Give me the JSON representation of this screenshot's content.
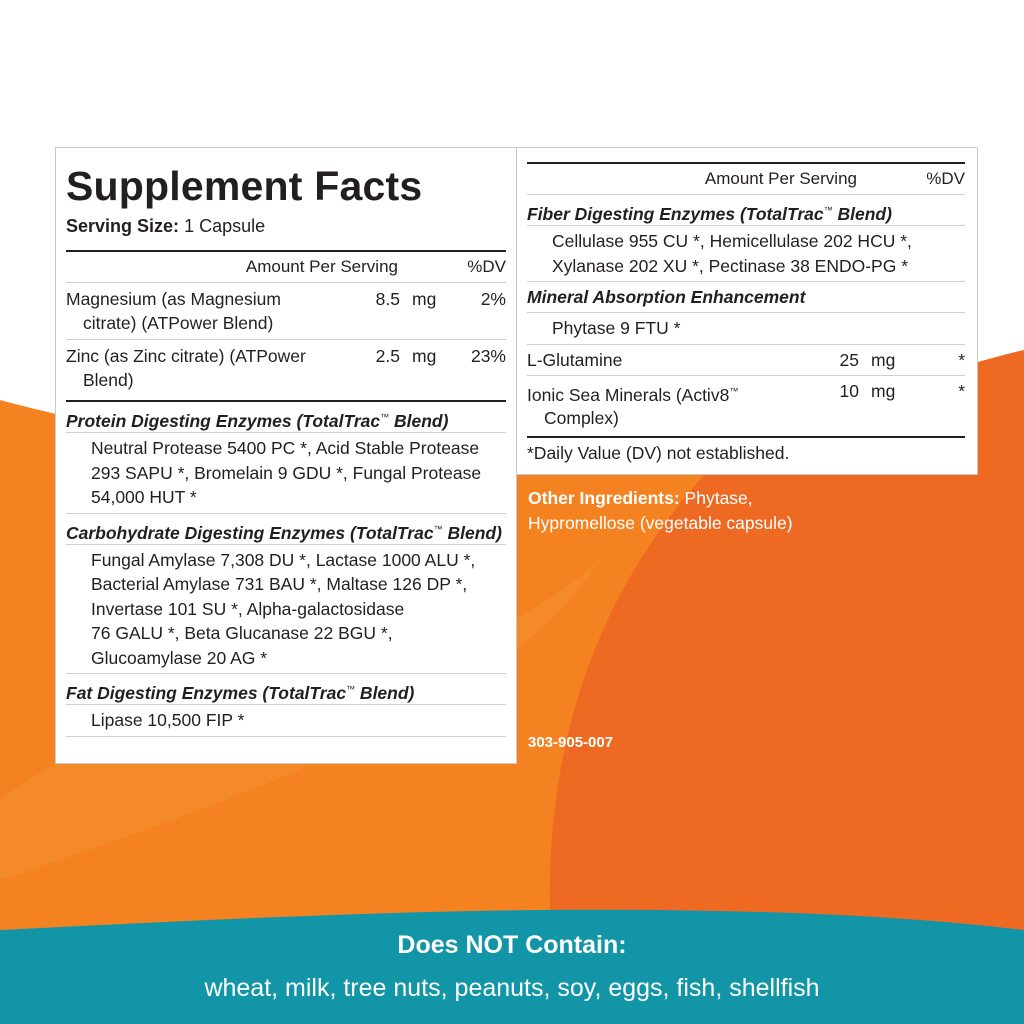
{
  "colors": {
    "orange": "#f58220",
    "orange_dark": "#ee6a22",
    "teal": "#1295a6",
    "ink": "#231f20"
  },
  "left_panel": {
    "title": "Supplement Facts",
    "serving_label": "Serving Size:",
    "serving_value": "1 Capsule",
    "header_amount": "Amount Per Serving",
    "header_dv": "%DV",
    "nutrients": [
      {
        "name_line1": "Magnesium (as Magnesium",
        "name_line2": "citrate) (ATPower Blend)",
        "qty": "8.5",
        "unit": "mg",
        "dv": "2%"
      },
      {
        "name_line1": "Zinc (as Zinc citrate) (ATPower",
        "name_line2": "Blend)",
        "qty": "2.5",
        "unit": "mg",
        "dv": "23%"
      }
    ],
    "blends": [
      {
        "title": "Protein Digesting Enzymes (TotalTrac",
        "tm": "™",
        "title_end": " Blend)",
        "lines": [
          "Neutral Protease 5400 PC *, Acid Stable Protease",
          "293 SAPU *, Bromelain 9 GDU *, Fungal Protease",
          "54,000 HUT *"
        ]
      },
      {
        "title": "Carbohydrate Digesting Enzymes (TotalTrac",
        "tm": "™",
        "title_end": " Blend)",
        "lines": [
          "Fungal Amylase 7,308 DU *, Lactase 1000 ALU *,",
          "Bacterial Amylase 731 BAU *, Maltase 126 DP *,",
          "Invertase 101 SU *, Alpha-galactosidase",
          "76 GALU *, Beta Glucanase 22 BGU *,",
          "Glucoamylase 20 AG *"
        ]
      },
      {
        "title": "Fat Digesting Enzymes (TotalTrac",
        "tm": "™",
        "title_end": " Blend)",
        "lines": [
          "Lipase 10,500 FIP *"
        ]
      }
    ]
  },
  "right_panel": {
    "header_amount": "Amount Per Serving",
    "header_dv": "%DV",
    "fiber": {
      "title": "Fiber Digesting Enzymes (TotalTrac",
      "tm": "™",
      "title_end": " Blend)",
      "lines": [
        "Cellulase 955 CU *, Hemicellulase 202 HCU *,",
        "Xylanase 202 XU *, Pectinase 38 ENDO-PG *"
      ]
    },
    "mineral": {
      "title": "Mineral Absorption Enhancement",
      "lines": [
        "Phytase 9 FTU *"
      ]
    },
    "items": [
      {
        "name_line1": "L-Glutamine",
        "name_line2": "",
        "tm": "",
        "qty": "25",
        "unit": "mg",
        "dv": "*"
      },
      {
        "name_line1": "Ionic Sea Minerals (Activ8",
        "tm": "™",
        "name_line2": "Complex)",
        "qty": "10",
        "unit": "mg",
        "dv": "*"
      }
    ],
    "footnote": "*Daily Value (DV) not established."
  },
  "other_ingredients": {
    "label": "Other Ingredients:",
    "line1": " Phytase,",
    "line2": "Hypromellose (vegetable capsule)"
  },
  "lot_code": "303-905-007",
  "does_not_contain": {
    "title": "Does NOT Contain:",
    "list": "wheat, milk, tree nuts, peanuts, soy, eggs, fish, shellfish"
  }
}
